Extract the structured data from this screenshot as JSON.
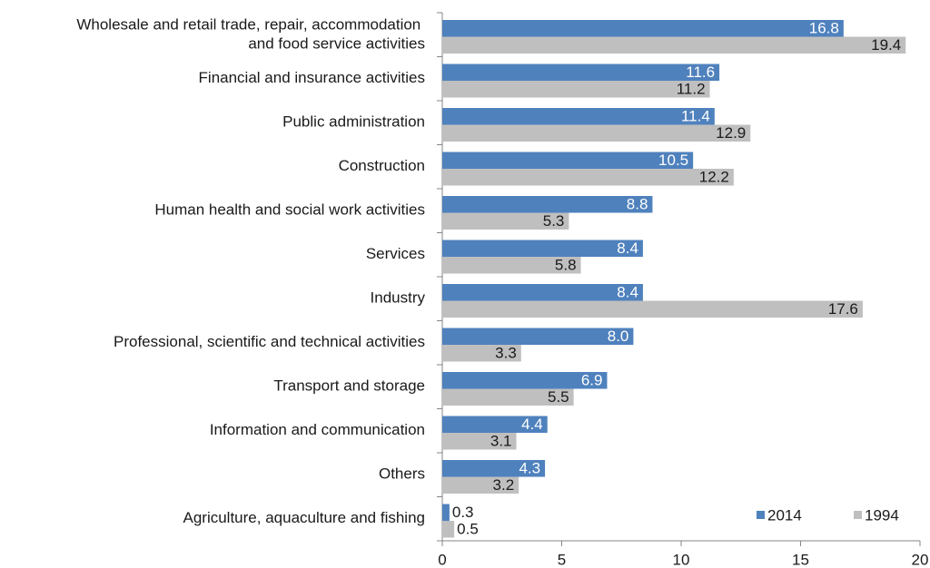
{
  "chart_data": {
    "type": "hbar",
    "categories": [
      "Wholesale and retail trade, repair, accommodation and food service activities",
      "Financial and insurance activities",
      "Public administration",
      "Construction",
      "Human health and social work activities",
      "Services",
      "Industry",
      "Professional, scientific and technical activities",
      "Transport and storage",
      "Information and communication",
      "Others",
      "Agriculture, aquaculture and fishing"
    ],
    "series": [
      {
        "name": "2014",
        "color": "#4f81bd",
        "label_color": "#ffffff",
        "values": [
          16.8,
          11.6,
          11.4,
          10.5,
          8.8,
          8.4,
          8.4,
          8.0,
          6.9,
          4.4,
          4.3,
          0.3
        ],
        "value_labels": [
          "16.8",
          "11.6",
          "11.4",
          "10.5",
          "8.8",
          "8.4",
          "8.4",
          "8.0",
          "6.9",
          "4.4",
          "4.3",
          "0.3"
        ]
      },
      {
        "name": "1994",
        "color": "#bfbfbf",
        "label_color": "#1a1a1a",
        "values": [
          19.4,
          11.2,
          12.9,
          12.2,
          5.3,
          5.8,
          17.6,
          3.3,
          5.5,
          3.1,
          3.2,
          0.5
        ],
        "value_labels": [
          "19.4",
          "11.2",
          "12.9",
          "12.2",
          "5.3",
          "5.8",
          "17.6",
          "3.3",
          "5.5",
          "3.1",
          "3.2",
          "0.5"
        ]
      }
    ],
    "xlim": [
      0,
      20
    ],
    "xticks": [
      0,
      5,
      10,
      15,
      20
    ],
    "legend": "lower right"
  }
}
